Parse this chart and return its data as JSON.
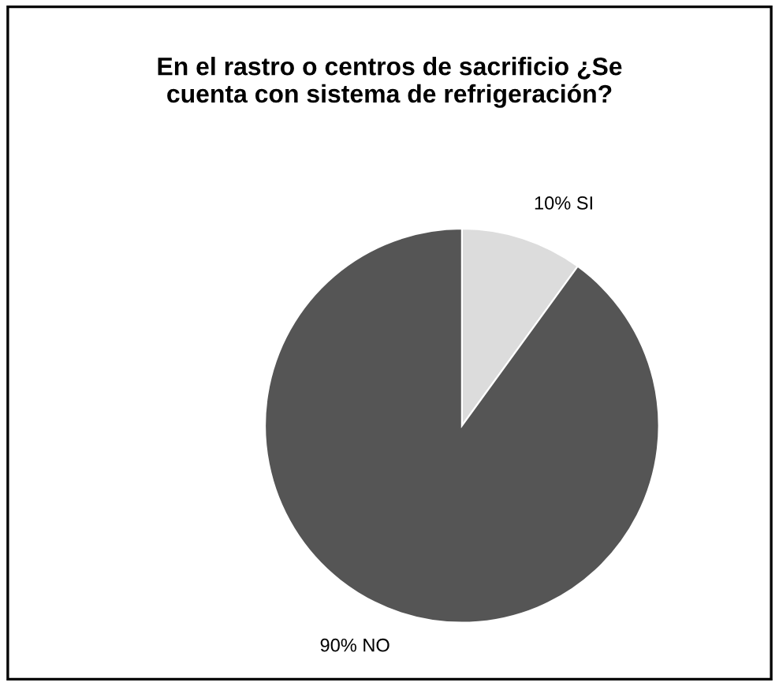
{
  "chart_data": {
    "type": "pie",
    "title": "En el rastro o centros de sacrificio ¿Se\ncuenta con sistema de refrigeración?",
    "categories": [
      "SI",
      "NO"
    ],
    "values": [
      10,
      90
    ],
    "colors": [
      "#dcdcdc",
      "#555555"
    ],
    "value_labels": [
      "10%",
      "90%"
    ],
    "legend": false
  }
}
